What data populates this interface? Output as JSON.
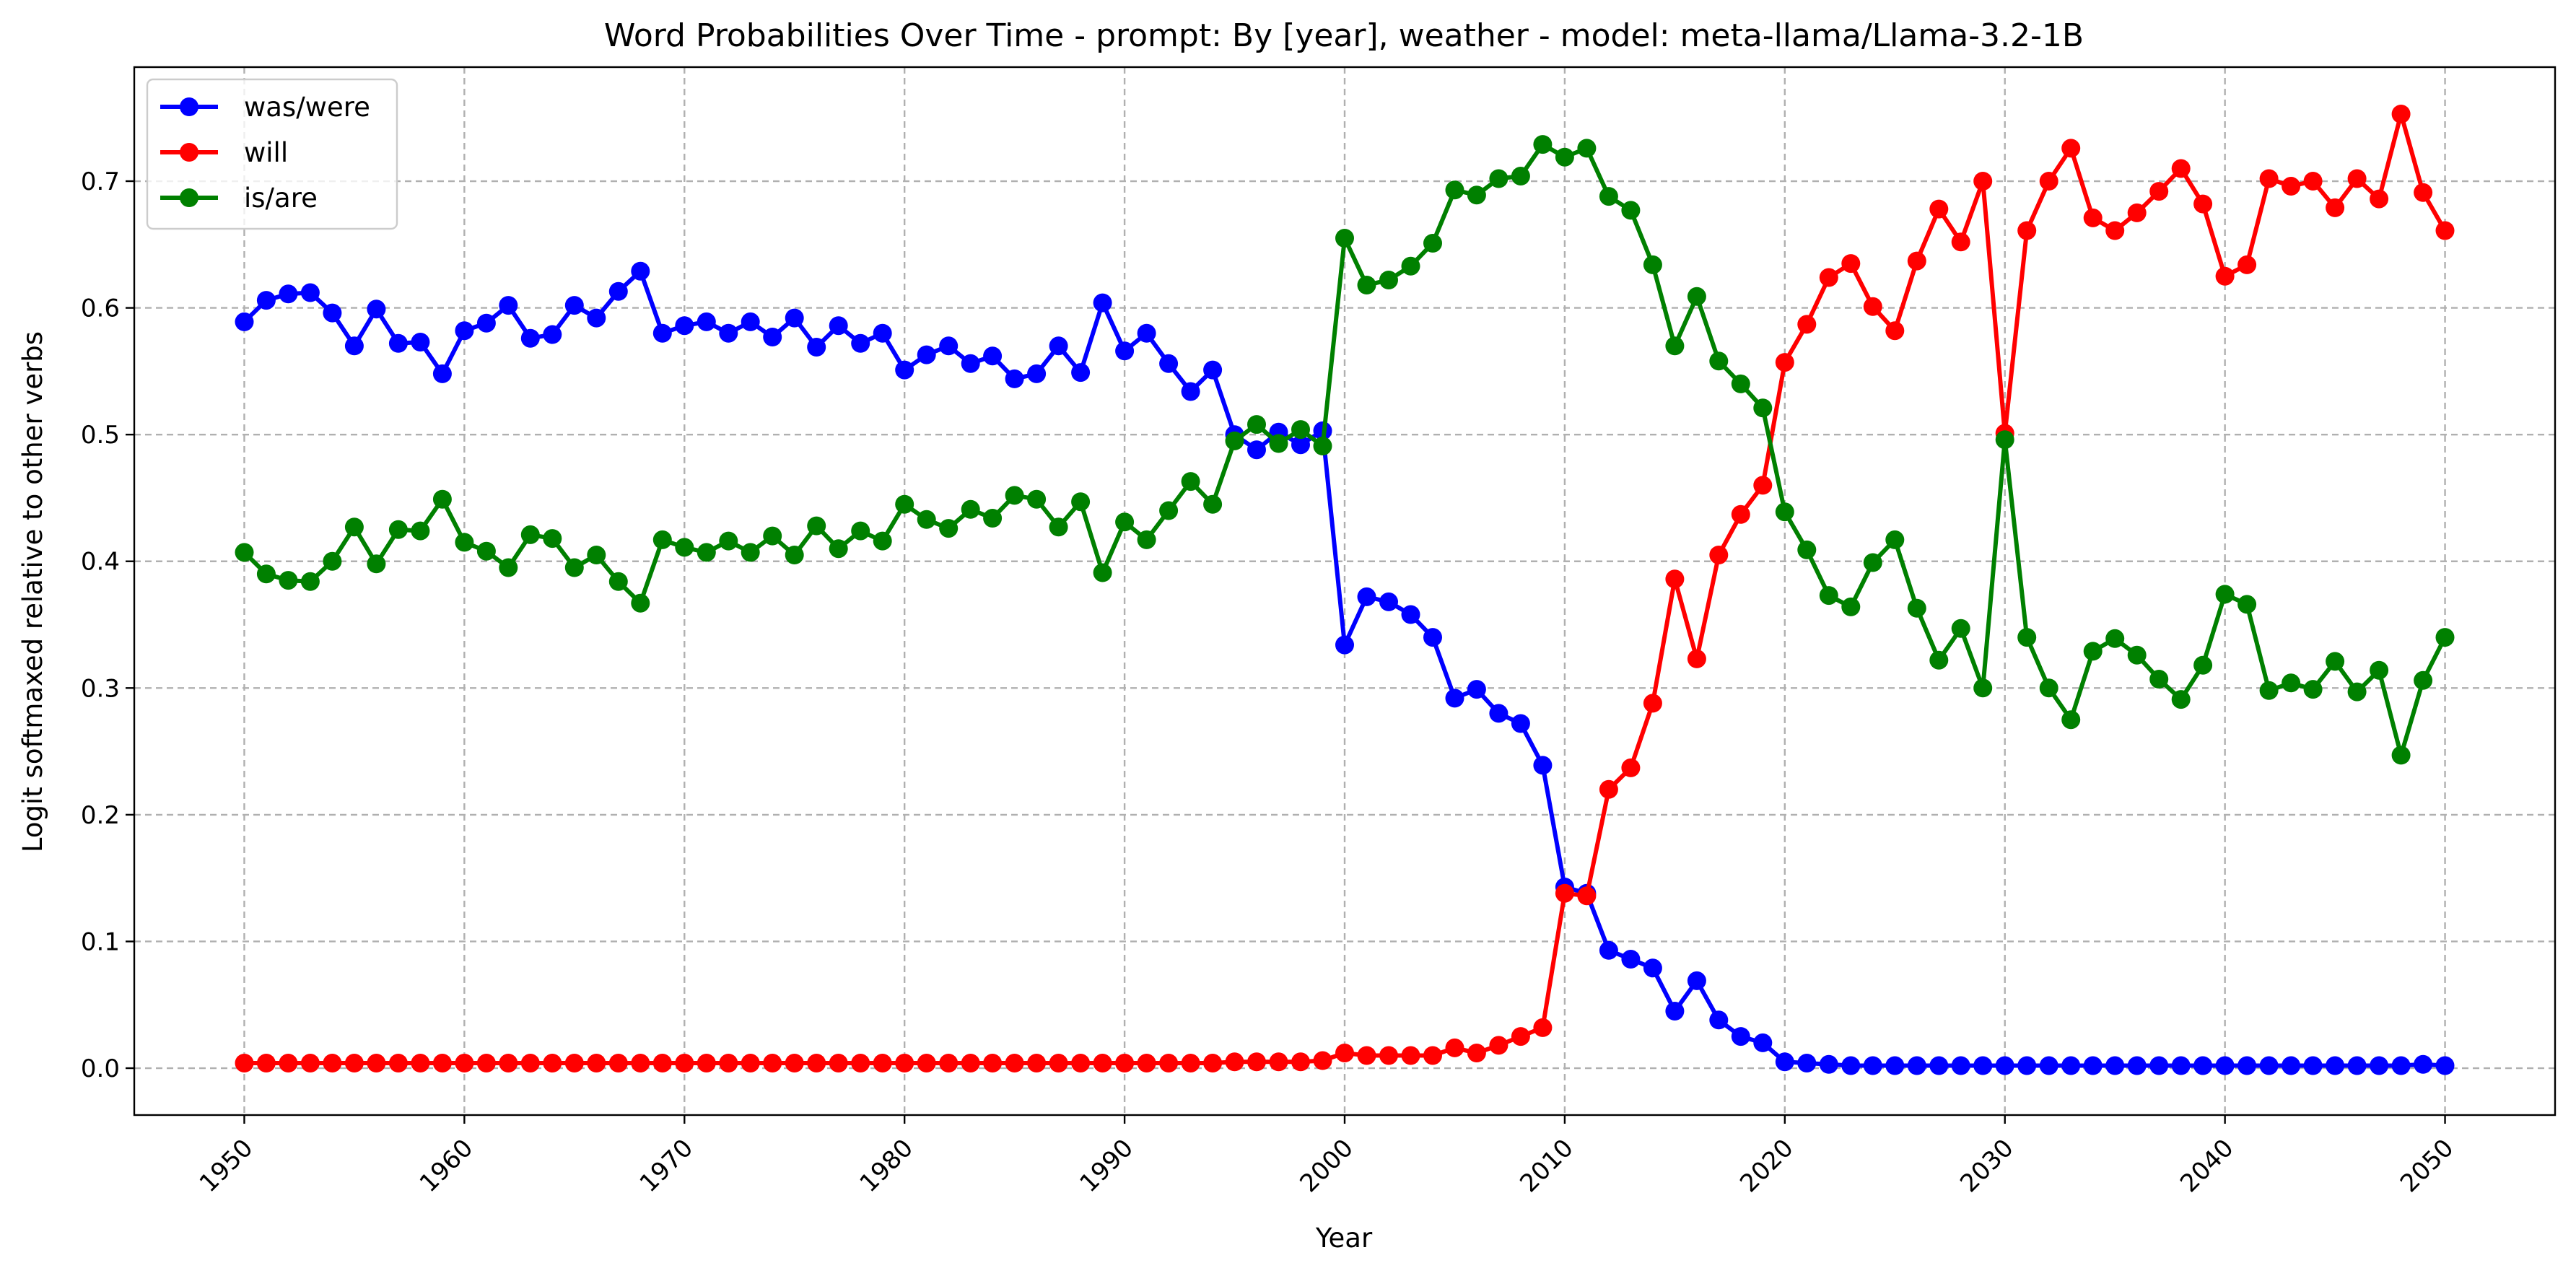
{
  "chart_data": {
    "type": "line",
    "title": "Word Probabilities Over Time - prompt: By [year], weather - model: meta-llama/Llama-3.2-1B",
    "xlabel": "Year",
    "ylabel": "Logit softmaxed relative to other verbs",
    "xlim": [
      1945,
      2055
    ],
    "ylim": [
      -0.037,
      0.79
    ],
    "xticks": [
      1950,
      1960,
      1970,
      1980,
      1990,
      2000,
      2010,
      2020,
      2030,
      2040,
      2050
    ],
    "xtick_labels": [
      "1950",
      "1960",
      "1970",
      "1980",
      "1990",
      "2000",
      "2010",
      "2020",
      "2030",
      "2040",
      "2050"
    ],
    "yticks": [
      0.0,
      0.1,
      0.2,
      0.3,
      0.4,
      0.5,
      0.6,
      0.7
    ],
    "ytick_labels": [
      "0.0",
      "0.1",
      "0.2",
      "0.3",
      "0.4",
      "0.5",
      "0.6",
      "0.7"
    ],
    "grid": true,
    "legend_position": "top-left",
    "x_start": 1950,
    "x_end": 2050,
    "series": [
      {
        "name": "was/were",
        "color": "#0000ff",
        "values": [
          0.589,
          0.606,
          0.611,
          0.612,
          0.596,
          0.57,
          0.599,
          0.572,
          0.573,
          0.548,
          0.582,
          0.588,
          0.602,
          0.576,
          0.579,
          0.602,
          0.592,
          0.613,
          0.629,
          0.58,
          0.586,
          0.589,
          0.58,
          0.589,
          0.577,
          0.592,
          0.569,
          0.586,
          0.572,
          0.58,
          0.551,
          0.563,
          0.57,
          0.556,
          0.562,
          0.544,
          0.548,
          0.57,
          0.549,
          0.604,
          0.566,
          0.58,
          0.556,
          0.534,
          0.551,
          0.5,
          0.488,
          0.502,
          0.492,
          0.503,
          0.334,
          0.372,
          0.368,
          0.358,
          0.34,
          0.292,
          0.299,
          0.28,
          0.272,
          0.239,
          0.143,
          0.138,
          0.093,
          0.086,
          0.079,
          0.045,
          0.069,
          0.038,
          0.025,
          0.02,
          0.005,
          0.004,
          0.003,
          0.002,
          0.002,
          0.002,
          0.002,
          0.002,
          0.002,
          0.002,
          0.002,
          0.002,
          0.002,
          0.002,
          0.002,
          0.002,
          0.002,
          0.002,
          0.002,
          0.002,
          0.002,
          0.002,
          0.002,
          0.002,
          0.002,
          0.002,
          0.002,
          0.002,
          0.002,
          0.003,
          0.002
        ]
      },
      {
        "name": "will",
        "color": "#ff0000",
        "values": [
          0.004,
          0.004,
          0.004,
          0.004,
          0.004,
          0.004,
          0.004,
          0.004,
          0.004,
          0.004,
          0.004,
          0.004,
          0.004,
          0.004,
          0.004,
          0.004,
          0.004,
          0.004,
          0.004,
          0.004,
          0.004,
          0.004,
          0.004,
          0.004,
          0.004,
          0.004,
          0.004,
          0.004,
          0.004,
          0.004,
          0.004,
          0.004,
          0.004,
          0.004,
          0.004,
          0.004,
          0.004,
          0.004,
          0.004,
          0.004,
          0.004,
          0.004,
          0.004,
          0.004,
          0.004,
          0.005,
          0.005,
          0.005,
          0.005,
          0.006,
          0.012,
          0.01,
          0.01,
          0.01,
          0.01,
          0.016,
          0.012,
          0.018,
          0.025,
          0.032,
          0.138,
          0.136,
          0.22,
          0.237,
          0.288,
          0.386,
          0.323,
          0.405,
          0.437,
          0.46,
          0.557,
          0.587,
          0.624,
          0.635,
          0.601,
          0.582,
          0.637,
          0.678,
          0.652,
          0.7,
          0.501,
          0.661,
          0.7,
          0.726,
          0.671,
          0.661,
          0.675,
          0.692,
          0.71,
          0.682,
          0.625,
          0.634,
          0.702,
          0.696,
          0.7,
          0.679,
          0.702,
          0.686,
          0.753,
          0.691,
          0.661
        ]
      },
      {
        "name": "is/are",
        "color": "#008000",
        "values": [
          0.407,
          0.39,
          0.385,
          0.384,
          0.4,
          0.427,
          0.398,
          0.425,
          0.424,
          0.449,
          0.415,
          0.408,
          0.395,
          0.421,
          0.418,
          0.395,
          0.405,
          0.384,
          0.367,
          0.417,
          0.411,
          0.407,
          0.416,
          0.407,
          0.42,
          0.405,
          0.428,
          0.41,
          0.424,
          0.416,
          0.445,
          0.433,
          0.426,
          0.441,
          0.434,
          0.452,
          0.449,
          0.427,
          0.447,
          0.391,
          0.431,
          0.417,
          0.44,
          0.463,
          0.445,
          0.495,
          0.508,
          0.493,
          0.504,
          0.491,
          0.655,
          0.618,
          0.622,
          0.633,
          0.651,
          0.693,
          0.689,
          0.702,
          0.704,
          0.729,
          0.719,
          0.726,
          0.688,
          0.677,
          0.634,
          0.57,
          0.609,
          0.558,
          0.54,
          0.521,
          0.439,
          0.409,
          0.373,
          0.364,
          0.399,
          0.417,
          0.363,
          0.322,
          0.347,
          0.3,
          0.496,
          0.34,
          0.3,
          0.275,
          0.329,
          0.339,
          0.326,
          0.307,
          0.291,
          0.318,
          0.374,
          0.366,
          0.298,
          0.304,
          0.299,
          0.321,
          0.297,
          0.314,
          0.247,
          0.306,
          0.34
        ]
      }
    ]
  }
}
